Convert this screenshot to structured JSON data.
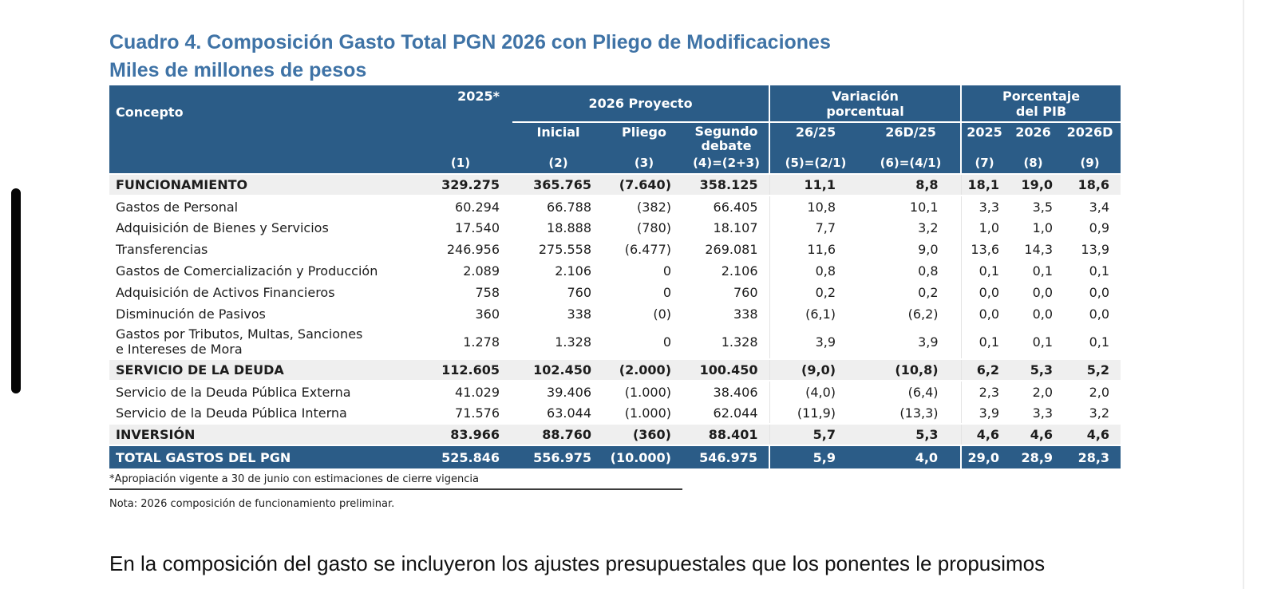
{
  "colors": {
    "header-blue": "#2b5c87",
    "title-blue": "#3f73a6",
    "stripe-gray": "#efefef"
  },
  "page": {
    "title_line1": "Cuadro 4. Composición Gasto Total PGN 2026 con Pliego de Modificaciones",
    "title_line2": "Miles de millones de pesos",
    "paragraph": "En la composición del gasto se incluyeron los ajustes presupuestales que los ponentes le propusimos"
  },
  "table": {
    "header": {
      "concepto": "Concepto",
      "col_2025": "2025*",
      "group_2026": "2026 Proyecto",
      "group_variacion": "Variación\nporcentual",
      "group_pib": "Porcentaje\ndel PIB",
      "sub": [
        "Inicial",
        "Pliego",
        "Segundo debate",
        "26/25",
        "26D/25",
        "2025",
        "2026",
        "2026D"
      ],
      "nums": [
        "(1)",
        "(2)",
        "(3)",
        "(4)=(2+3)",
        "(5)=(2/1)",
        "(6)=(4/1)",
        "(7)",
        "(8)",
        "(9)"
      ]
    },
    "rows": [
      {
        "label": "FUNCIONAMIENTO",
        "style": "section",
        "values": [
          "329.275",
          "365.765",
          "(7.640)",
          "358.125",
          "11,1",
          "8,8",
          "18,1",
          "19,0",
          "18,6"
        ]
      },
      {
        "label": "Gastos de Personal",
        "style": "detail",
        "values": [
          "60.294",
          "66.788",
          "(382)",
          "66.405",
          "10,8",
          "10,1",
          "3,3",
          "3,5",
          "3,4"
        ]
      },
      {
        "label": "Adquisición de Bienes y Servicios",
        "style": "detail",
        "values": [
          "17.540",
          "18.888",
          "(780)",
          "18.107",
          "7,7",
          "3,2",
          "1,0",
          "1,0",
          "0,9"
        ]
      },
      {
        "label": "Transferencias",
        "style": "detail",
        "values": [
          "246.956",
          "275.558",
          "(6.477)",
          "269.081",
          "11,6",
          "9,0",
          "13,6",
          "14,3",
          "13,9"
        ]
      },
      {
        "label": "Gastos de Comercialización y Producción",
        "style": "detail",
        "values": [
          "2.089",
          "2.106",
          "0",
          "2.106",
          "0,8",
          "0,8",
          "0,1",
          "0,1",
          "0,1"
        ]
      },
      {
        "label": "Adquisición de Activos Financieros",
        "style": "detail",
        "values": [
          "758",
          "760",
          "0",
          "760",
          "0,2",
          "0,2",
          "0,0",
          "0,0",
          "0,0"
        ]
      },
      {
        "label": "Disminución de Pasivos",
        "style": "detail",
        "values": [
          "360",
          "338",
          "(0)",
          "338",
          "(6,1)",
          "(6,2)",
          "0,0",
          "0,0",
          "0,0"
        ]
      },
      {
        "label": "Gastos por Tributos, Multas, Sanciones\n e Intereses de Mora",
        "style": "detail",
        "values": [
          "1.278",
          "1.328",
          "0",
          "1.328",
          "3,9",
          "3,9",
          "0,1",
          "0,1",
          "0,1"
        ]
      },
      {
        "label": "SERVICIO DE LA DEUDA",
        "style": "section",
        "values": [
          "112.605",
          "102.450",
          "(2.000)",
          "100.450",
          "(9,0)",
          "(10,8)",
          "6,2",
          "5,3",
          "5,2"
        ]
      },
      {
        "label": "Servicio de la Deuda Pública Externa",
        "style": "detail",
        "values": [
          "41.029",
          "39.406",
          "(1.000)",
          "38.406",
          "(4,0)",
          "(6,4)",
          "2,3",
          "2,0",
          "2,0"
        ]
      },
      {
        "label": "Servicio de la Deuda Pública Interna",
        "style": "detail",
        "values": [
          "71.576",
          "63.044",
          "(1.000)",
          "62.044",
          "(11,9)",
          "(13,3)",
          "3,9",
          "3,3",
          "3,2"
        ]
      },
      {
        "label": "INVERSIÓN",
        "style": "section",
        "values": [
          "83.966",
          "88.760",
          "(360)",
          "88.401",
          "5,7",
          "5,3",
          "4,6",
          "4,6",
          "4,6"
        ]
      },
      {
        "label": "TOTAL GASTOS DEL PGN",
        "style": "total",
        "values": [
          "525.846",
          "556.975",
          "(10.000)",
          "546.975",
          "5,9",
          "4,0",
          "29,0",
          "28,9",
          "28,3"
        ]
      }
    ],
    "footnote": "*Apropiación vigente a 30 de junio con estimaciones de cierre vigencia",
    "nota": "Nota: 2026 composición de funcionamiento preliminar."
  }
}
